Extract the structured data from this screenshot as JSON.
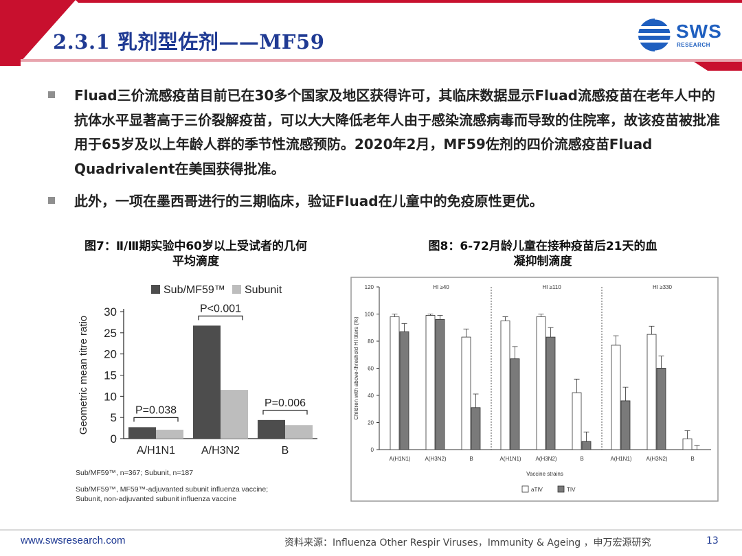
{
  "header": {
    "title": "2.3.1 乳剂型佐剂——MF59",
    "logo_text": "SWS",
    "logo_sub": "RESEARCH",
    "accent_color": "#c8102e",
    "title_color": "#1f3a93"
  },
  "bullets": [
    {
      "text": "Fluad三价流感疫苗目前已在30多个国家及地区获得许可，其临床数据显示Fluad流感疫苗在老年人中的抗体水平显著高于三价裂解疫苗，可以大大降低老年人由于感染流感病毒而导致的住院率，故该疫苗被批准用于65岁及以上年龄人群的季节性流感预防。2020年2月，MF59佐剂的四价流感疫苗Fluad Quadrivalent在美国获得批准。"
    },
    {
      "text": "此外，一项在墨西哥进行的三期临床，验证Fluad在儿童中的免疫原性更优。"
    }
  ],
  "figures": {
    "fig7_caption_line1": "图7：Ⅱ/Ⅲ期实验中60岁以上受试者的几何",
    "fig7_caption_line2": "平均滴度",
    "fig8_caption_line1": "图8：6-72月龄儿童在接种疫苗后21天的血",
    "fig8_caption_line2": "凝抑制滴度"
  },
  "chart_data": [
    {
      "type": "bar",
      "categories": [
        "A/H1N1",
        "A/H3N2",
        "B"
      ],
      "series": [
        {
          "name": "Sub/MF59™",
          "values": [
            2.7,
            26.7,
            4.4
          ],
          "color": "#4d4d4d"
        },
        {
          "name": "Subunit",
          "values": [
            2.1,
            11.5,
            3.2
          ],
          "color": "#bdbdbd"
        }
      ],
      "ylabel": "Geometric mean titre ratio",
      "ylim": [
        0,
        30
      ],
      "yticks": [
        "0",
        "5",
        "10",
        "15",
        "20",
        "25",
        "30"
      ],
      "annotations": [
        "P=0.038",
        "P<0.001",
        "P=0.006"
      ],
      "notes": [
        "Sub/MF59™, n=367; Subunit, n=187",
        "Sub/MF59™, MF59™-adjuvanted subunit influenza vaccine;",
        "Subunit, non-adjuvanted subunit influenza vaccine"
      ]
    },
    {
      "type": "bar",
      "panels": [
        "HI ≥40",
        "HI ≥110",
        "HI ≥330"
      ],
      "categories": [
        "A(H1N1)",
        "A(H3N2)",
        "B"
      ],
      "series": [
        {
          "name": "aTIV",
          "color": "#ffffff",
          "values": [
            [
              98,
              99,
              83
            ],
            [
              95,
              98,
              42
            ],
            [
              77,
              85,
              8
            ]
          ],
          "errors": [
            [
              2,
              1,
              6
            ],
            [
              3,
              2,
              10
            ],
            [
              7,
              6,
              6
            ]
          ]
        },
        {
          "name": "TIV",
          "color": "#7a7a7a",
          "values": [
            [
              87,
              96,
              31
            ],
            [
              67,
              83,
              6
            ],
            [
              36,
              60,
              0
            ]
          ],
          "errors": [
            [
              6,
              3,
              10
            ],
            [
              9,
              7,
              7
            ],
            [
              10,
              9,
              3
            ]
          ]
        }
      ],
      "xlabel": "Vaccine strains",
      "ylabel": "Children with above-threshold HI titers (%)",
      "ylim": [
        0,
        120
      ],
      "yticks": [
        "0",
        "20",
        "40",
        "60",
        "80",
        "100",
        "120"
      ]
    }
  ],
  "footer": {
    "url": "www.swsresearch.com",
    "source": "资料来源：Influenza Other Respir Viruses，Immunity & Ageing ，申万宏源研究",
    "page": "13"
  }
}
